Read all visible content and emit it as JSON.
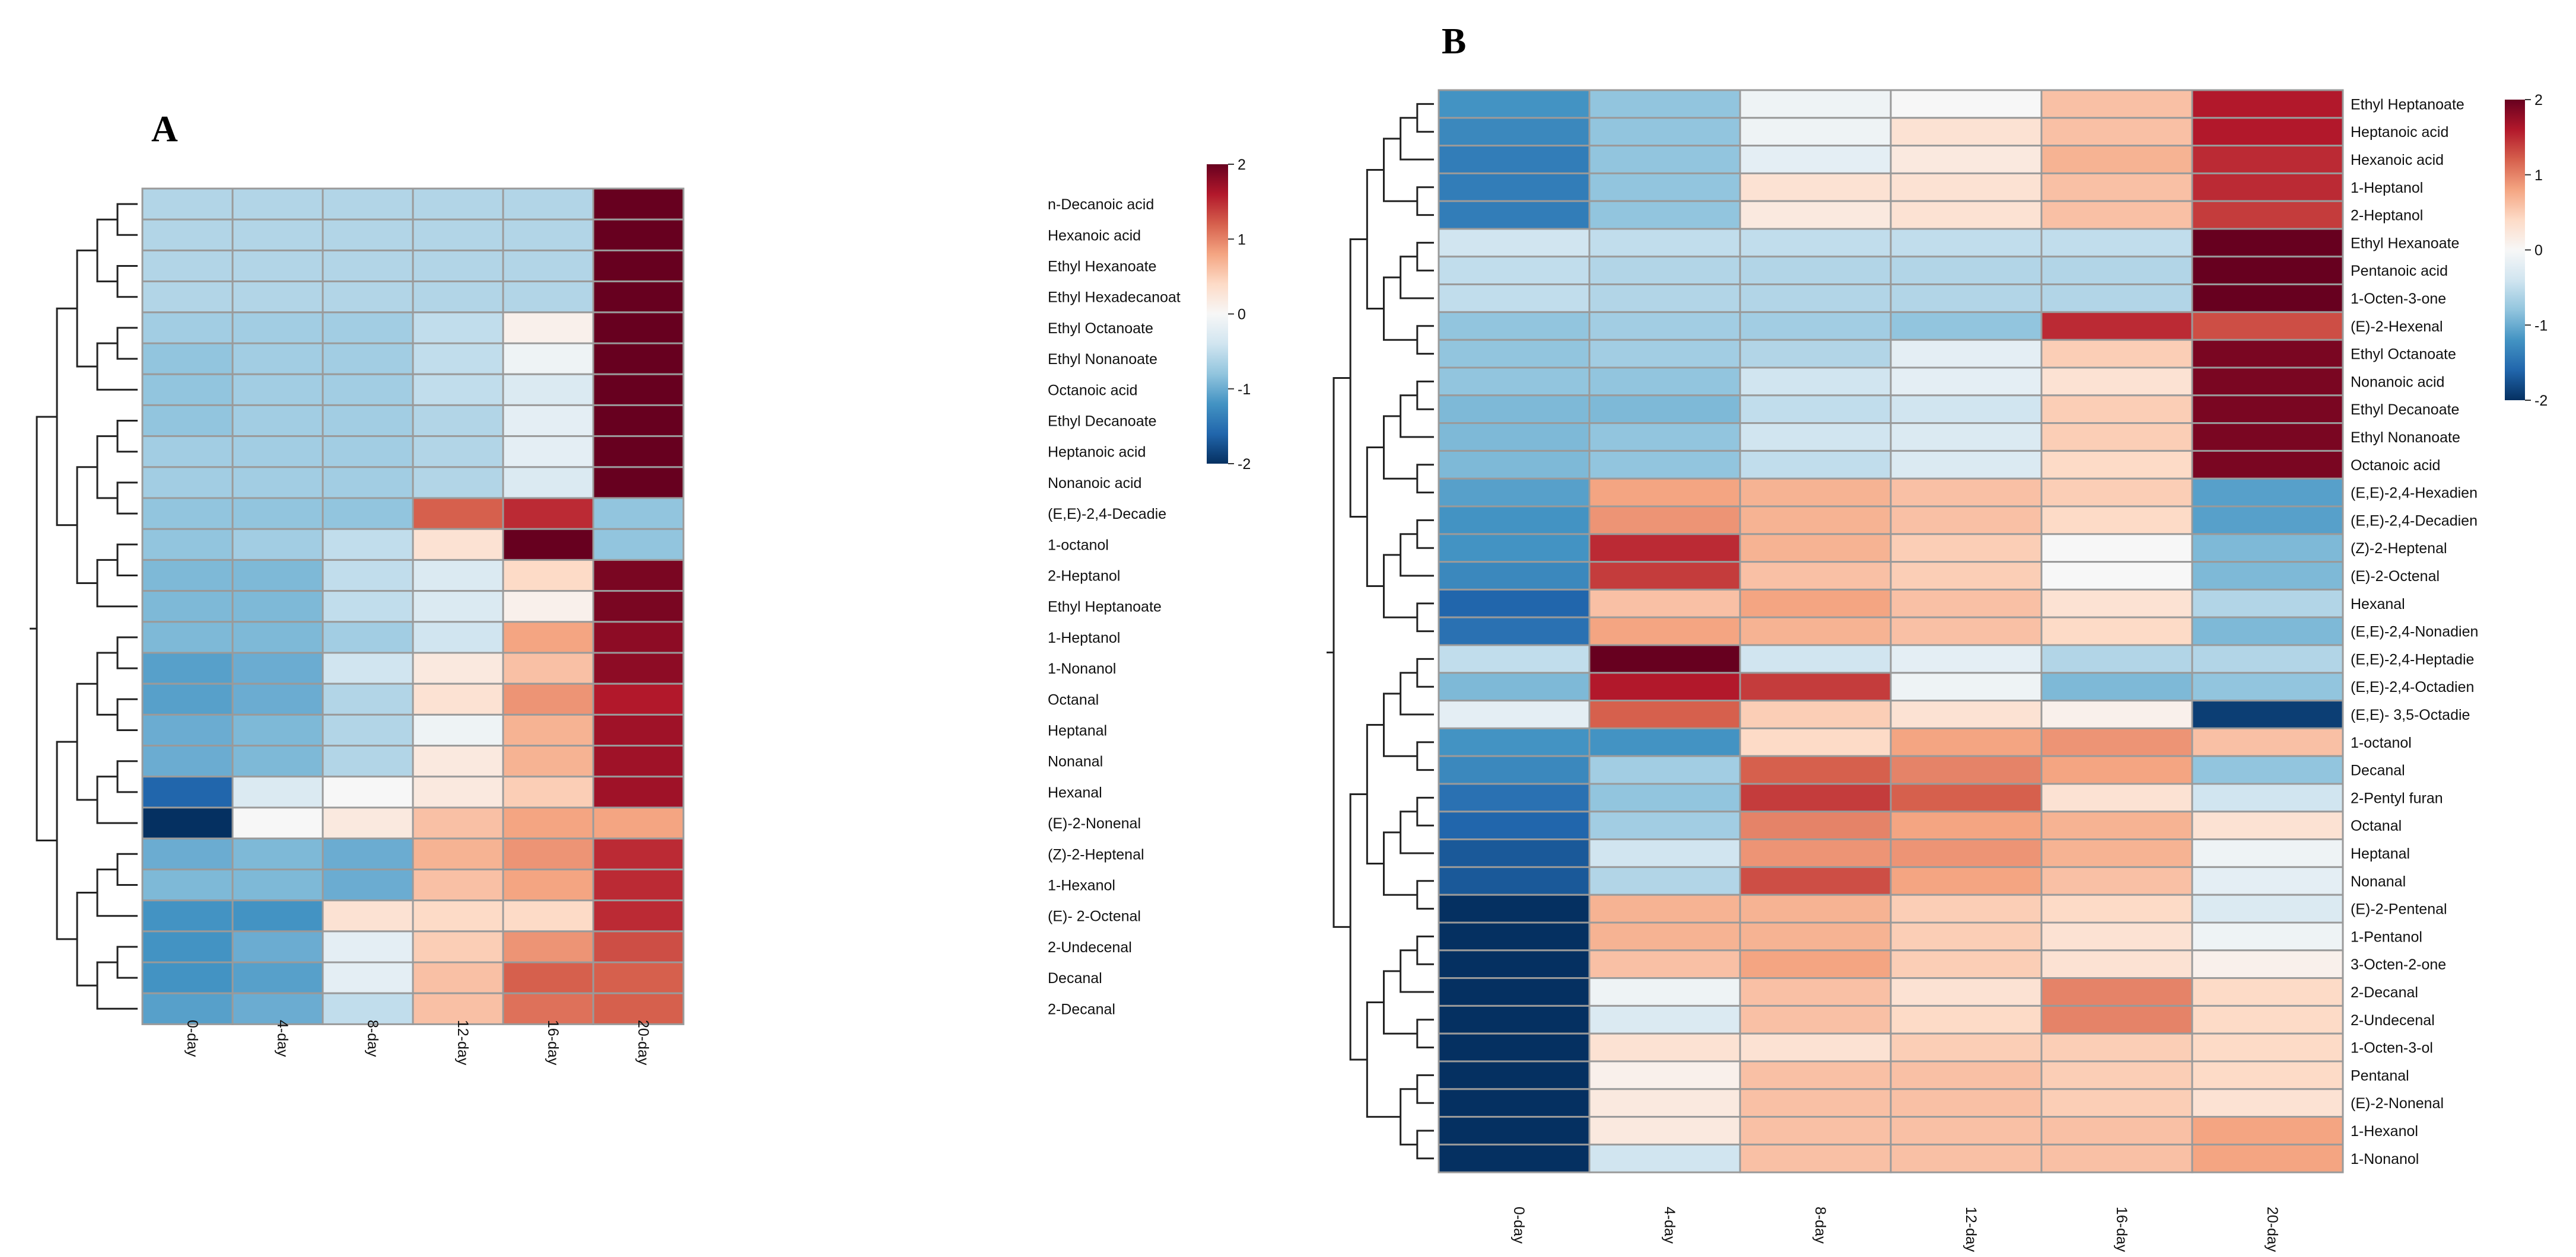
{
  "chart_data": [
    {
      "type": "heatmap",
      "panel": "A",
      "columns": [
        "0-day",
        "4-day",
        "8-day",
        "12-day",
        "16-day",
        "20-day"
      ],
      "rows": [
        "n-Decanoic acid",
        "Hexanoic acid",
        "Ethyl Hexanoate",
        "Ethyl Hexadecanoat",
        "Ethyl Octanoate",
        "Ethyl Nonanoate",
        "Octanoic acid",
        "Ethyl Decanoate",
        "Heptanoic acid",
        "Nonanoic acid",
        " (E,E)-2,4-Decadie",
        "1-octanol",
        "2-Heptanol",
        "Ethyl Heptanoate",
        "1-Heptanol",
        "1-Nonanol",
        "Octanal",
        "Heptanal",
        "Nonanal",
        "Hexanal",
        "(E)-2-Nonenal",
        "(Z)-2-Heptenal",
        "1-Hexanol",
        "(E)- 2-Octenal",
        "2-Undecenal",
        "Decanal",
        "2-Decanal"
      ],
      "values": [
        [
          -0.6,
          -0.6,
          -0.6,
          -0.6,
          -0.6,
          2.0
        ],
        [
          -0.6,
          -0.6,
          -0.6,
          -0.6,
          -0.6,
          2.0
        ],
        [
          -0.6,
          -0.6,
          -0.6,
          -0.6,
          -0.6,
          2.0
        ],
        [
          -0.6,
          -0.6,
          -0.6,
          -0.6,
          -0.6,
          2.0
        ],
        [
          -0.7,
          -0.7,
          -0.7,
          -0.5,
          0.1,
          2.0
        ],
        [
          -0.8,
          -0.7,
          -0.7,
          -0.5,
          -0.1,
          2.0
        ],
        [
          -0.8,
          -0.7,
          -0.7,
          -0.5,
          -0.3,
          2.0
        ],
        [
          -0.8,
          -0.7,
          -0.7,
          -0.6,
          -0.2,
          2.0
        ],
        [
          -0.7,
          -0.7,
          -0.7,
          -0.6,
          -0.2,
          2.0
        ],
        [
          -0.7,
          -0.7,
          -0.7,
          -0.6,
          -0.3,
          2.0
        ],
        [
          -0.8,
          -0.8,
          -0.8,
          1.2,
          1.5,
          -0.8
        ],
        [
          -0.8,
          -0.7,
          -0.5,
          0.3,
          2.0,
          -0.8
        ],
        [
          -0.9,
          -0.9,
          -0.5,
          -0.3,
          0.4,
          1.9
        ],
        [
          -0.9,
          -0.9,
          -0.5,
          -0.3,
          0.1,
          1.9
        ],
        [
          -0.9,
          -0.9,
          -0.7,
          -0.4,
          0.8,
          1.8
        ],
        [
          -1.1,
          -1.0,
          -0.4,
          0.2,
          0.6,
          1.8
        ],
        [
          -1.1,
          -1.0,
          -0.6,
          0.3,
          0.9,
          1.6
        ],
        [
          -1.0,
          -0.9,
          -0.6,
          -0.1,
          0.7,
          1.7
        ],
        [
          -1.0,
          -0.9,
          -0.6,
          0.2,
          0.7,
          1.7
        ],
        [
          -1.6,
          -0.3,
          0.0,
          0.2,
          0.5,
          1.7
        ],
        [
          -2.0,
          0.0,
          0.2,
          0.6,
          0.8,
          0.8
        ],
        [
          -1.0,
          -0.9,
          -1.0,
          0.7,
          0.9,
          1.5
        ],
        [
          -0.9,
          -0.9,
          -1.0,
          0.6,
          0.8,
          1.5
        ],
        [
          -1.2,
          -1.2,
          0.3,
          0.4,
          0.4,
          1.5
        ],
        [
          -1.2,
          -1.0,
          -0.2,
          0.5,
          0.9,
          1.3
        ],
        [
          -1.2,
          -1.1,
          -0.2,
          0.6,
          1.2,
          1.2
        ],
        [
          -1.1,
          -1.0,
          -0.5,
          0.6,
          1.1,
          1.2
        ]
      ],
      "color_scale": {
        "min": -2,
        "max": 2,
        "ticks": [
          "2",
          "1",
          "0",
          "-1",
          "-2"
        ],
        "colors": [
          "#053061",
          "#2166ac",
          "#4393c3",
          "#92c5de",
          "#d1e5f0",
          "#f7f7f7",
          "#fddbc7",
          "#f4a582",
          "#d6604d",
          "#b2182b",
          "#67001f"
        ]
      }
    },
    {
      "type": "heatmap",
      "panel": "B",
      "columns": [
        "0-day",
        "4-day",
        "8-day",
        "12-day",
        "16-day",
        "20-day"
      ],
      "rows": [
        "Ethyl Heptanoate",
        "Heptanoic acid",
        "Hexanoic acid",
        "1-Heptanol",
        "2-Heptanol",
        "Ethyl Hexanoate",
        "Pentanoic acid",
        "1-Octen-3-one",
        "(E)-2-Hexenal",
        "Ethyl Octanoate",
        "Nonanoic acid",
        "Ethyl Decanoate",
        "Ethyl Nonanoate",
        "Octanoic acid",
        "(E,E)-2,4-Hexadien",
        "(E,E)-2,4-Decadien",
        "(Z)-2-Heptenal",
        "(E)-2-Octenal",
        "Hexanal",
        "(E,E)-2,4-Nonadien",
        "(E,E)-2,4-Heptadie",
        "(E,E)-2,4-Octadien",
        "(E,E)- 3,5-Octadie",
        "1-octanol",
        "Decanal",
        "2-Pentyl furan",
        "Octanal",
        "Heptanal",
        "Nonanal",
        "(E)-2-Pentenal",
        "1-Pentanol",
        "3-Octen-2-one",
        "2-Decanal",
        "2-Undecenal",
        "1-Octen-3-ol",
        "Pentanal",
        "(E)-2-Nonenal",
        "1-Hexanol",
        "1-Nonanol"
      ],
      "values": [
        [
          -1.2,
          -0.8,
          -0.1,
          0.0,
          0.6,
          1.6
        ],
        [
          -1.3,
          -0.8,
          -0.1,
          0.3,
          0.6,
          1.6
        ],
        [
          -1.4,
          -0.8,
          -0.2,
          0.2,
          0.7,
          1.5
        ],
        [
          -1.4,
          -0.8,
          0.3,
          0.3,
          0.6,
          1.5
        ],
        [
          -1.4,
          -0.8,
          0.2,
          0.3,
          0.6,
          1.4
        ],
        [
          -0.4,
          -0.5,
          -0.5,
          -0.5,
          -0.5,
          2.0
        ],
        [
          -0.5,
          -0.6,
          -0.6,
          -0.6,
          -0.6,
          2.0
        ],
        [
          -0.5,
          -0.6,
          -0.6,
          -0.6,
          -0.6,
          2.0
        ],
        [
          -0.8,
          -0.7,
          -0.7,
          -0.8,
          1.5,
          1.3
        ],
        [
          -0.8,
          -0.7,
          -0.6,
          -0.2,
          0.5,
          1.9
        ],
        [
          -0.8,
          -0.8,
          -0.4,
          -0.2,
          0.3,
          1.9
        ],
        [
          -0.9,
          -0.9,
          -0.5,
          -0.4,
          0.5,
          1.9
        ],
        [
          -0.9,
          -0.8,
          -0.4,
          -0.3,
          0.5,
          1.9
        ],
        [
          -0.9,
          -0.8,
          -0.5,
          -0.3,
          0.4,
          1.9
        ],
        [
          -1.1,
          0.8,
          0.7,
          0.6,
          0.5,
          -1.1
        ],
        [
          -1.2,
          0.9,
          0.7,
          0.6,
          0.4,
          -1.1
        ],
        [
          -1.2,
          1.5,
          0.7,
          0.5,
          0.0,
          -0.9
        ],
        [
          -1.3,
          1.4,
          0.6,
          0.5,
          0.0,
          -0.9
        ],
        [
          -1.6,
          0.6,
          0.8,
          0.6,
          0.3,
          -0.6
        ],
        [
          -1.5,
          0.8,
          0.7,
          0.6,
          0.4,
          -0.9
        ],
        [
          -0.5,
          2.0,
          -0.4,
          -0.2,
          -0.6,
          -0.6
        ],
        [
          -0.9,
          1.6,
          1.4,
          -0.1,
          -0.9,
          -0.8
        ],
        [
          -0.2,
          1.2,
          0.5,
          0.3,
          0.1,
          -1.9
        ],
        [
          -1.2,
          -1.2,
          0.4,
          0.8,
          0.9,
          0.6
        ],
        [
          -1.3,
          -0.7,
          1.2,
          1.0,
          0.8,
          -0.8
        ],
        [
          -1.5,
          -0.8,
          1.4,
          1.2,
          0.3,
          -0.4
        ],
        [
          -1.6,
          -0.7,
          1.0,
          0.8,
          0.7,
          0.3
        ],
        [
          -1.7,
          -0.4,
          0.9,
          0.9,
          0.7,
          -0.1
        ],
        [
          -1.7,
          -0.6,
          1.3,
          0.8,
          0.6,
          -0.2
        ],
        [
          -2.0,
          0.7,
          0.7,
          0.5,
          0.4,
          -0.3
        ],
        [
          -2.0,
          0.7,
          0.7,
          0.5,
          0.3,
          -0.1
        ],
        [
          -2.0,
          0.6,
          0.8,
          0.5,
          0.3,
          0.1
        ],
        [
          -2.0,
          -0.1,
          0.6,
          0.3,
          1.0,
          0.4
        ],
        [
          -2.0,
          -0.3,
          0.6,
          0.4,
          1.0,
          0.4
        ],
        [
          -2.0,
          0.3,
          0.3,
          0.5,
          0.5,
          0.4
        ],
        [
          -2.0,
          0.1,
          0.6,
          0.6,
          0.5,
          0.4
        ],
        [
          -2.0,
          0.2,
          0.6,
          0.6,
          0.5,
          0.3
        ],
        [
          -2.0,
          0.2,
          0.6,
          0.6,
          0.6,
          0.8
        ],
        [
          -2.0,
          -0.4,
          0.6,
          0.6,
          0.6,
          0.8
        ]
      ],
      "color_scale": {
        "min": -2,
        "max": 2,
        "ticks": [
          "2",
          "1",
          "0",
          "-1",
          "-2"
        ],
        "colors": [
          "#053061",
          "#2166ac",
          "#4393c3",
          "#92c5de",
          "#d1e5f0",
          "#f7f7f7",
          "#fddbc7",
          "#f4a582",
          "#d6604d",
          "#b2182b",
          "#67001f"
        ]
      }
    }
  ]
}
